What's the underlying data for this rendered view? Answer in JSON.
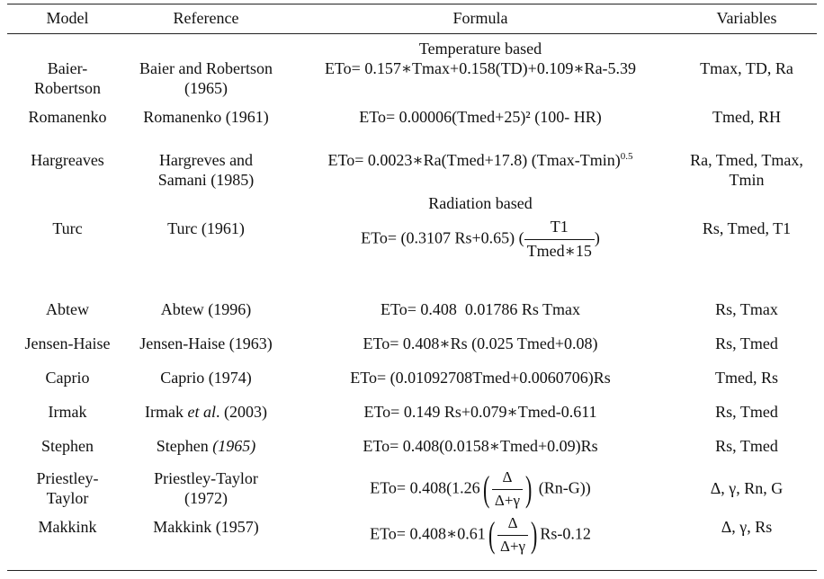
{
  "headers": {
    "model": "Model",
    "reference": "Reference",
    "formula": "Formula",
    "variables": "Variables"
  },
  "sections": {
    "temperature": "Temperature based",
    "radiation": "Radiation based"
  },
  "rows": [
    {
      "model": "Baier-Robertson",
      "model_l1": "Baier-",
      "model_l2": "Robertson",
      "reference_l1": "Baier and Robertson",
      "reference_l2": "(1965)",
      "formula": "ETo= 0.157∗Tmax+0.158(TD)+0.109∗Ra-5.39",
      "variables": "Tmax, TD, Ra"
    },
    {
      "model": "Romanenko",
      "reference": "Romanenko (1961)",
      "formula": "ETo= 0.00006(Tmed+25)² (100- HR)",
      "variables": "Tmed, RH"
    },
    {
      "model": "Hargreaves",
      "reference_l1": "Hargreves and",
      "reference_l2": "Samani (1985)",
      "formula_main": "ETo= 0.0023∗Ra(Tmed+17.8) (Tmax-Tmin)",
      "formula_exp": "0.5",
      "variables_l1": "Ra, Tmed, Tmax,",
      "variables_l2": "Tmin"
    },
    {
      "model": "Turc",
      "reference": "Turc (1961)",
      "formula_pre": "ETo= (0.3107 Rs+0.65) (",
      "frac_num": "T1",
      "frac_den": "Tmed∗15",
      "formula_post": ")",
      "variables": "Rs, Tmed, T1"
    },
    {
      "model": "Abtew",
      "reference": "Abtew (1996)",
      "formula": "ETo= 0.408  0.01786 Rs Tmax",
      "variables": "Rs, Tmax"
    },
    {
      "model": "Jensen-Haise",
      "reference": "Jensen-Haise (1963)",
      "formula": "ETo= 0.408∗Rs (0.025 Tmed+0.08)",
      "variables": "Rs, Tmed"
    },
    {
      "model": "Caprio",
      "reference": "Caprio (1974)",
      "formula": "ETo= (0.01092708Tmed+0.0060706)Rs",
      "variables": "Tmed, Rs"
    },
    {
      "model": "Irmak",
      "reference_pre": "Irmak ",
      "reference_em": "et al",
      "reference_post": ". (2003)",
      "formula": "ETo= 0.149 Rs+0.079∗Tmed-0.611",
      "variables": "Rs, Tmed"
    },
    {
      "model": "Stephen",
      "reference_pre": "Stephen ",
      "reference_em": "(1965)",
      "formula": "ETo= 0.408(0.0158∗Tmed+0.09)Rs",
      "variables": "Rs, Tmed"
    },
    {
      "model_l1": "Priestley-",
      "model_l2": "Taylor",
      "reference_l1": "Priestley-Taylor",
      "reference_l2": "(1972)",
      "formula_pre": "ETo= 0.408(1.26",
      "frac_num": "Δ",
      "frac_den": "Δ+γ",
      "formula_post": "(Rn-G))",
      "variables": "Δ, γ, Rn, G"
    },
    {
      "model": "Makkink",
      "reference": "Makkink (1957)",
      "formula_pre": "ETo= 0.408∗0.61",
      "frac_num": "Δ",
      "frac_den": "Δ+γ",
      "formula_post": "Rs-0.12",
      "variables": "Δ, γ, Rs"
    }
  ]
}
